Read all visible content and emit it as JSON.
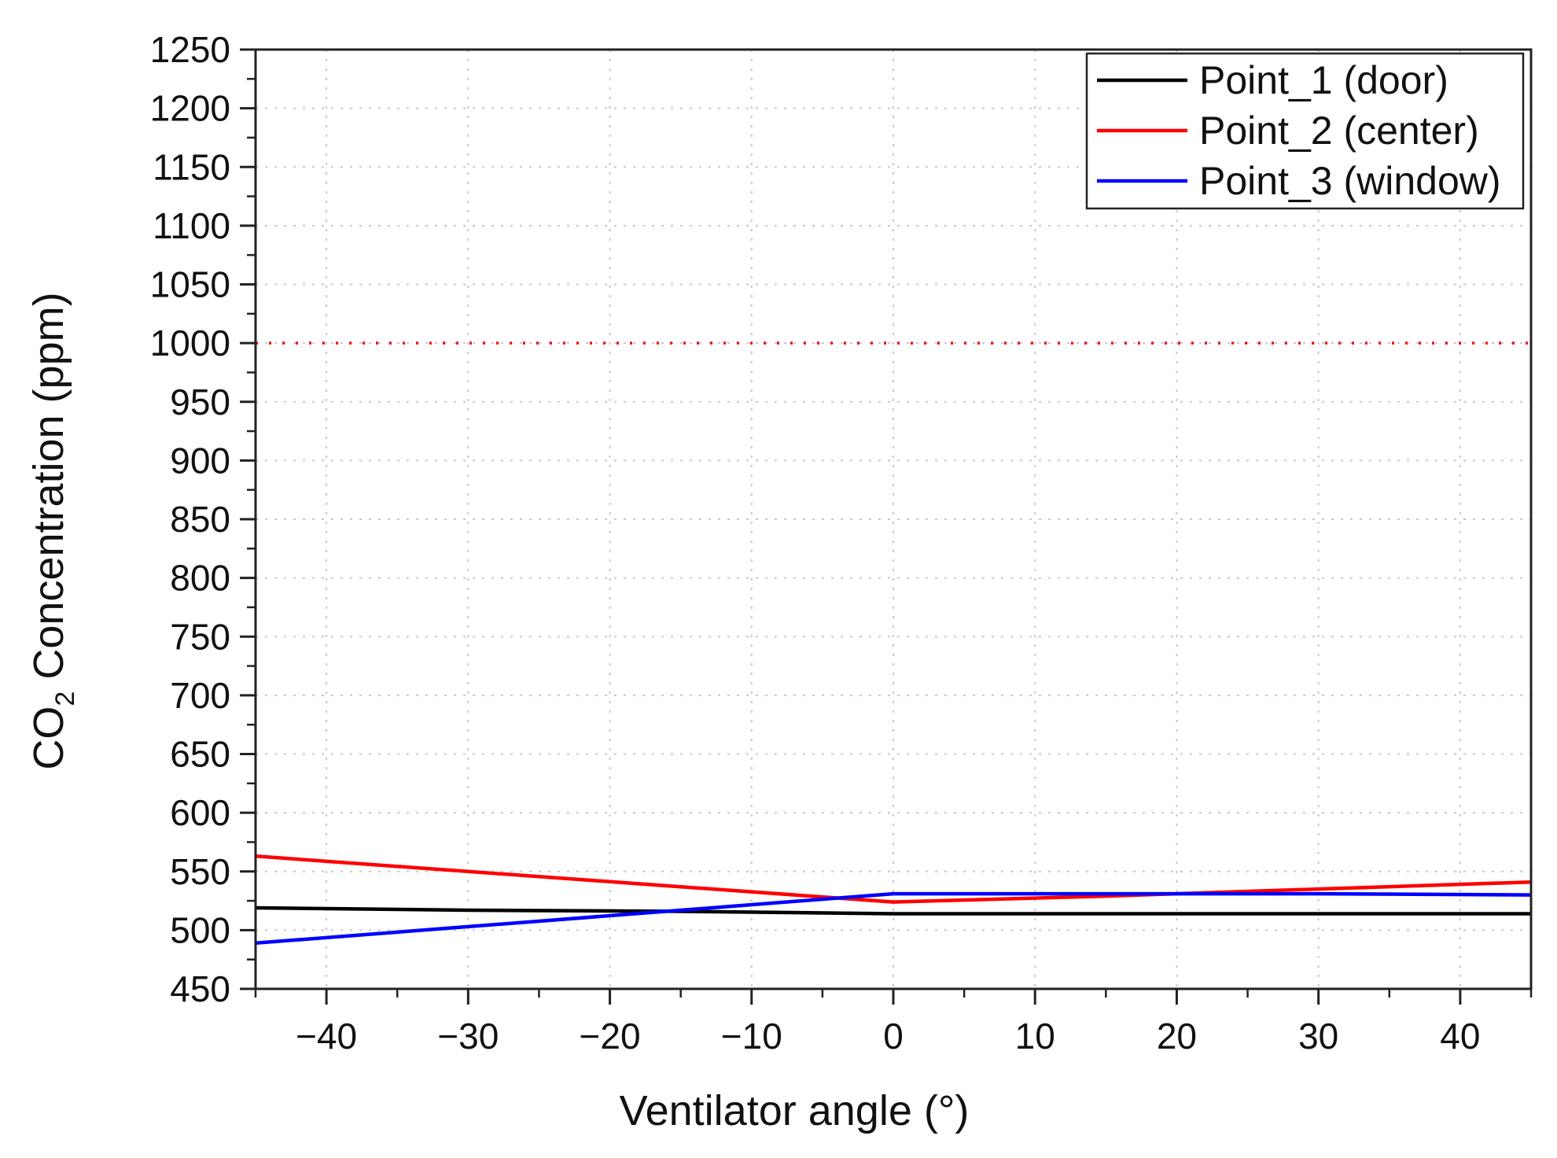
{
  "chart_data": {
    "type": "line",
    "xlabel": "Ventilator angle (°)",
    "ylabel_main": "CO",
    "ylabel_sub": "2",
    "ylabel_rest": " Concentration (ppm)",
    "xlim": [
      -45,
      45
    ],
    "ylim": [
      450,
      1250
    ],
    "x_ticks": [
      -40,
      -30,
      -20,
      -10,
      0,
      10,
      20,
      30,
      40
    ],
    "x_tick_labels": [
      "−40",
      "−30",
      "−20",
      "−10",
      "0",
      "10",
      "20",
      "30",
      "40"
    ],
    "y_ticks": [
      450,
      500,
      550,
      600,
      650,
      700,
      750,
      800,
      850,
      900,
      950,
      1000,
      1050,
      1100,
      1150,
      1200,
      1250
    ],
    "y_tick_labels": [
      "450",
      "500",
      "550",
      "600",
      "650",
      "700",
      "750",
      "800",
      "850",
      "900",
      "950",
      "1000",
      "1050",
      "1100",
      "1150",
      "1200",
      "1250"
    ],
    "grid": true,
    "legend_position": "top-right",
    "reference_line": {
      "y": 1000,
      "color": "#ff0000",
      "style": "dotted"
    },
    "series": [
      {
        "name": "Point_1 (door)",
        "color": "#000000",
        "x": [
          -45,
          -30,
          -15,
          0,
          15,
          30,
          45
        ],
        "y": [
          519,
          517,
          516,
          514,
          514,
          514,
          514
        ]
      },
      {
        "name": "Point_2 (center)",
        "color": "#ff0000",
        "x": [
          -45,
          -30,
          -15,
          0,
          15,
          30,
          45
        ],
        "y": [
          563,
          550,
          537,
          524,
          529,
          535,
          541
        ]
      },
      {
        "name": "Point_3 (window)",
        "color": "#0000ff",
        "x": [
          -45,
          -30,
          -15,
          0,
          15,
          30,
          45
        ],
        "y": [
          489,
          503,
          517,
          531,
          531,
          531,
          530
        ]
      }
    ]
  }
}
